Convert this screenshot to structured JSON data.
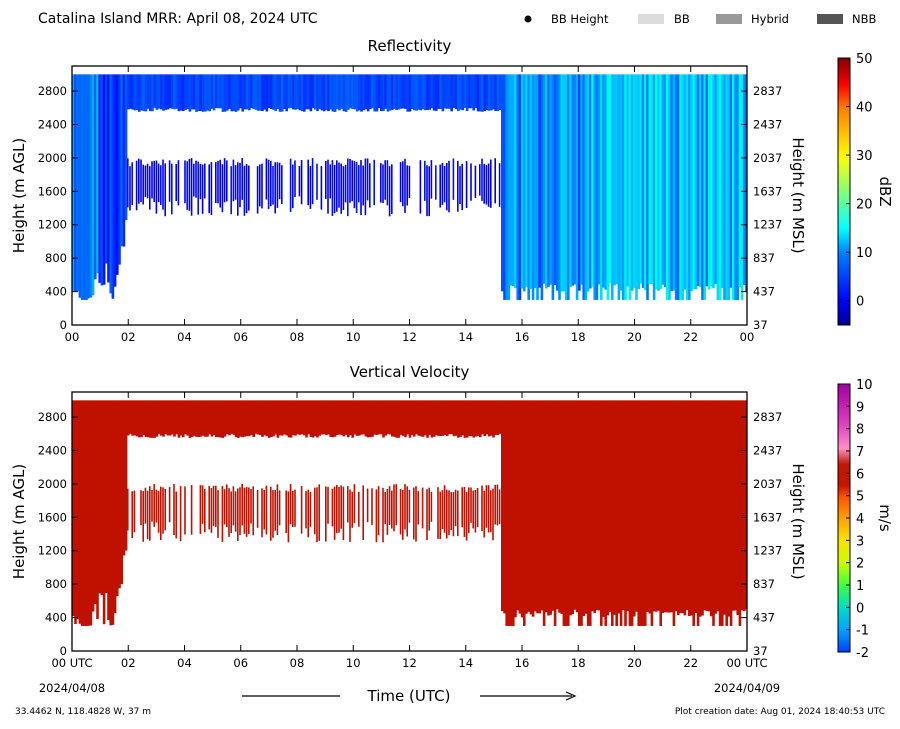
{
  "header": {
    "title": "Catalina Island MRR:  April 08, 2024 UTC",
    "legend": [
      {
        "label": "BB Height",
        "symbol": "dot",
        "color": "#000000"
      },
      {
        "label": "BB",
        "symbol": "swatch",
        "color": "#dcdcdc"
      },
      {
        "label": "Hybrid",
        "symbol": "swatch",
        "color": "#999999"
      },
      {
        "label": "NBB",
        "symbol": "swatch",
        "color": "#555555"
      }
    ]
  },
  "footer": {
    "coords": "33.4462 N, 118.4828 W, 37 m",
    "created": "Plot creation date: Aug 01, 2024 18:40:53 UTC"
  },
  "chart_data": [
    {
      "type": "heatmap",
      "title": "Reflectivity",
      "xlabel": "",
      "ylabel": "Height (m AGL)",
      "y2label": "Height (m MSL)",
      "x_ticks": [
        "00",
        "02",
        "04",
        "06",
        "08",
        "10",
        "12",
        "14",
        "16",
        "18",
        "20",
        "22",
        "00"
      ],
      "xlim": [
        0,
        24
      ],
      "y_ticks": [
        0,
        400,
        800,
        1200,
        1600,
        2000,
        2400,
        2800
      ],
      "y2_ticks": [
        37,
        437,
        837,
        1237,
        1637,
        2037,
        2437,
        2837
      ],
      "ylim": [
        0,
        3100
      ],
      "colorbar": {
        "label": "dBZ",
        "ticks": [
          0,
          10,
          20,
          30,
          40,
          50
        ],
        "range": [
          -5,
          50
        ],
        "colors": [
          "#00008f",
          "#0000ff",
          "#00ffff",
          "#7fff7f",
          "#ffff00",
          "#ff7f00",
          "#ff0000",
          "#7f0000"
        ]
      },
      "segments": [
        {
          "t": [
            0,
            1.9
          ],
          "base": 300,
          "top": 3000,
          "dbz_low": 2,
          "dbz_high": 10
        },
        {
          "t": [
            1.9,
            15.2
          ],
          "base": 1300,
          "top": 2000,
          "dbz_low": -3,
          "dbz_high": 2,
          "note_gap": [
            2000,
            2300
          ]
        },
        {
          "t": [
            1.9,
            15.2
          ],
          "base": 2600,
          "top": 3000,
          "dbz_low": 0,
          "dbz_high": 6
        },
        {
          "t": [
            15.2,
            24
          ],
          "base": 300,
          "top": 3000,
          "dbz_low": 0,
          "dbz_high": 16
        }
      ]
    },
    {
      "type": "heatmap",
      "title": "Vertical Velocity",
      "xlabel": "Time (UTC)",
      "ylabel": "Height (m AGL)",
      "y2label": "Height (m MSL)",
      "x_ticks": [
        "00 UTC",
        "02",
        "04",
        "06",
        "08",
        "10",
        "12",
        "14",
        "16",
        "18",
        "20",
        "22",
        "00 UTC"
      ],
      "x_dates": [
        "2024/04/08",
        "2024/04/09"
      ],
      "xlim": [
        0,
        24
      ],
      "y_ticks": [
        0,
        400,
        800,
        1200,
        1600,
        2000,
        2400,
        2800
      ],
      "y2_ticks": [
        37,
        437,
        837,
        1237,
        1637,
        2037,
        2437,
        2837
      ],
      "ylim": [
        0,
        3100
      ],
      "colorbar": {
        "label": "m/s",
        "ticks": [
          -2,
          -1,
          0,
          1,
          2,
          3,
          4,
          5,
          6,
          7,
          8,
          9,
          10
        ],
        "range": [
          -2,
          10
        ],
        "colors": [
          "#0050ff",
          "#00b0ff",
          "#00e0a0",
          "#40ff40",
          "#c0ff00",
          "#ffe000",
          "#ffa000",
          "#ff5000",
          "#c81400",
          "#c01800",
          "#ff80c0",
          "#e040c0",
          "#a000a0"
        ]
      },
      "field_value": 6,
      "field_color": "#c01000"
    }
  ]
}
